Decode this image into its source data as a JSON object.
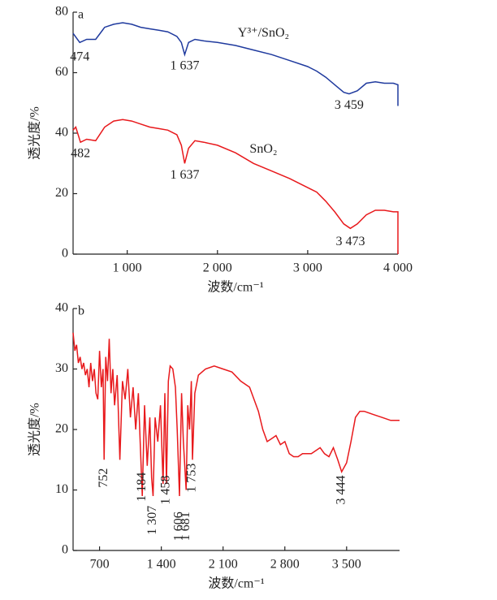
{
  "chart_data": [
    {
      "type": "line",
      "panel_label": "a",
      "xlabel": "波数/cm⁻¹",
      "ylabel": "透光度/%",
      "xlim": [
        400,
        4000
      ],
      "xticks": [
        {
          "value": 1000,
          "label": "1 000"
        },
        {
          "value": 2000,
          "label": "2 000"
        },
        {
          "value": 3000,
          "label": "3 000"
        },
        {
          "value": 4000,
          "label": "4 000"
        }
      ],
      "ylim": [
        0,
        80
      ],
      "yticks": [
        0,
        20,
        40,
        60,
        80
      ],
      "series": [
        {
          "name": "Y³⁺/SnO₂",
          "color": "#1f3a9e",
          "x": [
            400,
            474,
            550,
            650,
            750,
            850,
            950,
            1050,
            1150,
            1250,
            1350,
            1450,
            1550,
            1600,
            1637,
            1680,
            1750,
            1850,
            2000,
            2200,
            2400,
            2600,
            2800,
            3000,
            3100,
            3200,
            3300,
            3400,
            3459,
            3550,
            3650,
            3750,
            3850,
            3950,
            4000,
            4000
          ],
          "values": [
            73,
            70,
            71,
            71,
            75,
            76,
            76.5,
            76,
            75,
            74.5,
            74,
            73.5,
            72,
            70,
            66,
            70,
            71,
            70.5,
            70,
            69,
            67.5,
            66,
            64,
            62,
            60.5,
            58.5,
            56,
            53.5,
            53,
            54,
            56.5,
            57,
            56.5,
            56.5,
            56,
            49
          ]
        },
        {
          "name": "SnO₂",
          "color": "#e8191c",
          "x": [
            400,
            430,
            482,
            550,
            650,
            750,
            850,
            950,
            1050,
            1150,
            1250,
            1350,
            1450,
            1550,
            1600,
            1637,
            1680,
            1750,
            1850,
            2000,
            2200,
            2400,
            2600,
            2800,
            3000,
            3100,
            3200,
            3300,
            3400,
            3473,
            3550,
            3650,
            3750,
            3850,
            3950,
            4000,
            4000
          ],
          "values": [
            41,
            42,
            37,
            38,
            37.5,
            42,
            44,
            44.5,
            44,
            43,
            42,
            41.5,
            41,
            39.5,
            36,
            30,
            35,
            37.5,
            37,
            36,
            33.5,
            30,
            27.5,
            25,
            22,
            20.5,
            17.5,
            14,
            10,
            8.5,
            10,
            13,
            14.5,
            14.5,
            14,
            14,
            0
          ]
        }
      ],
      "annotations": [
        {
          "text": "474",
          "x": 474,
          "y": 65
        },
        {
          "text": "1 637",
          "x": 1637,
          "y": 62
        },
        {
          "text": "3 459",
          "x": 3459,
          "y": 49
        },
        {
          "text": "482",
          "x": 482,
          "y": 33
        },
        {
          "text": "1 637",
          "x": 1637,
          "y": 26
        },
        {
          "text": "3 473",
          "x": 3473,
          "y": 4
        }
      ]
    },
    {
      "type": "line",
      "panel_label": "b",
      "xlabel": "波数/cm⁻¹",
      "ylabel": "透光度/%",
      "xlim": [
        400,
        4100
      ],
      "xticks": [
        700,
        {
          "value": 1400,
          "label": "1 400"
        },
        {
          "value": 2100,
          "label": "2 100"
        },
        {
          "value": 2800,
          "label": "2 800"
        },
        {
          "value": 3500,
          "label": "3 500"
        }
      ],
      "ylim": [
        0,
        40
      ],
      "yticks": [
        0,
        10,
        20,
        30,
        40
      ],
      "series": [
        {
          "name": null,
          "color": "#e8191c",
          "x": [
            400,
            420,
            440,
            460,
            480,
            500,
            520,
            540,
            560,
            580,
            600,
            620,
            640,
            660,
            680,
            700,
            720,
            740,
            752,
            770,
            790,
            810,
            830,
            850,
            870,
            900,
            930,
            960,
            990,
            1020,
            1050,
            1080,
            1110,
            1140,
            1160,
            1184,
            1210,
            1240,
            1270,
            1290,
            1307,
            1330,
            1360,
            1390,
            1420,
            1440,
            1458,
            1480,
            1500,
            1530,
            1560,
            1580,
            1606,
            1630,
            1650,
            1681,
            1700,
            1720,
            1740,
            1753,
            1780,
            1820,
            1900,
            2000,
            2100,
            2200,
            2300,
            2400,
            2500,
            2550,
            2600,
            2650,
            2700,
            2750,
            2800,
            2850,
            2900,
            2950,
            3000,
            3100,
            3200,
            3250,
            3300,
            3350,
            3400,
            3444,
            3500,
            3550,
            3600,
            3650,
            3700,
            3800,
            3900,
            4000,
            4100
          ],
          "values": [
            36,
            33,
            34,
            31,
            32,
            30,
            31,
            29,
            30,
            27,
            31,
            28,
            30,
            26,
            25,
            33,
            27,
            30,
            15,
            32,
            28,
            35,
            26,
            30,
            24,
            29,
            15,
            28,
            25,
            30,
            22,
            27,
            20,
            26,
            18,
            9,
            24,
            14,
            22,
            12,
            9,
            22,
            18,
            24,
            11,
            26,
            11,
            28,
            30.5,
            30,
            27,
            20,
            9,
            26,
            18,
            10,
            24,
            20,
            28,
            15,
            26,
            29,
            30,
            30.5,
            30,
            29.5,
            28,
            27,
            23,
            20,
            18,
            18.5,
            19,
            17.5,
            18,
            16,
            15.5,
            15.5,
            16,
            16,
            17,
            16,
            15.5,
            17,
            15,
            13,
            14.5,
            18,
            22,
            23,
            23,
            22.5,
            22,
            21.5,
            21.5
          ]
        }
      ],
      "vertical_annotations": true,
      "annotations": [
        {
          "text": "752",
          "x": 752,
          "y": 12
        },
        {
          "text": "1 184",
          "x": 1184,
          "y": 10.5
        },
        {
          "text": "1 307",
          "x": 1307,
          "y": 5
        },
        {
          "text": "1 458",
          "x": 1458,
          "y": 10
        },
        {
          "text": "1 606",
          "x": 1606,
          "y": 4
        },
        {
          "text": "1 681",
          "x": 1681,
          "y": 4
        },
        {
          "text": "1 753",
          "x": 1753,
          "y": 12
        },
        {
          "text": "3 444",
          "x": 3444,
          "y": 10
        }
      ]
    }
  ]
}
